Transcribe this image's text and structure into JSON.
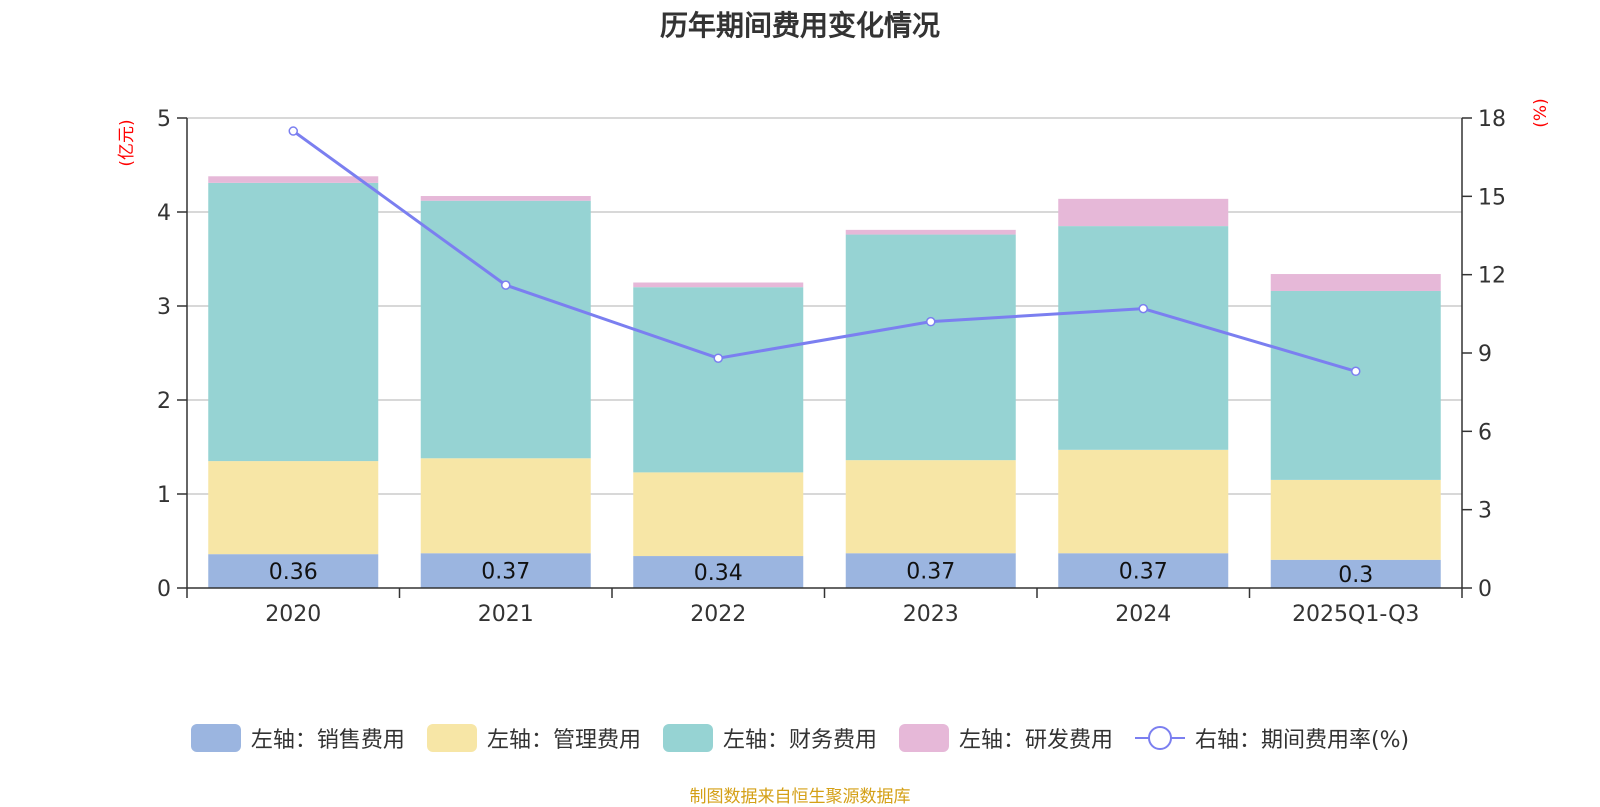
{
  "chart_data": {
    "type": "bar",
    "stacked": true,
    "title": "历年期间费用变化情况",
    "categories": [
      "2020",
      "2021",
      "2022",
      "2023",
      "2024",
      "2025Q1-Q3"
    ],
    "left_axis": {
      "unit": "(亿元)",
      "ylim": [
        0,
        5
      ],
      "ticks": [
        "0",
        "1",
        "2",
        "3",
        "4",
        "5"
      ]
    },
    "right_axis": {
      "unit": "(%)",
      "ylim": [
        0,
        18
      ],
      "ticks": [
        "0",
        "3",
        "6",
        "9",
        "12",
        "15",
        "18"
      ]
    },
    "series": [
      {
        "name": "左轴：销售费用",
        "color": "#9bb5e0",
        "values": [
          0.36,
          0.37,
          0.34,
          0.37,
          0.37,
          0.3
        ],
        "labels": [
          "0.36",
          "0.37",
          "0.34",
          "0.37",
          "0.37",
          "0.3"
        ]
      },
      {
        "name": "左轴：管理费用",
        "color": "#f7e6a6",
        "values": [
          0.99,
          1.01,
          0.89,
          0.99,
          1.1,
          0.85
        ]
      },
      {
        "name": "左轴：财务费用",
        "color": "#96d3d3",
        "values": [
          2.96,
          2.74,
          1.97,
          2.4,
          2.38,
          2.01
        ]
      },
      {
        "name": "左轴：研发费用",
        "color": "#e6b8d8",
        "values": [
          0.07,
          0.05,
          0.05,
          0.05,
          0.29,
          0.18
        ]
      }
    ],
    "line_series": {
      "name": "右轴：期间费用率(%)",
      "color": "#7b7ff0",
      "values": [
        17.5,
        11.6,
        8.8,
        10.2,
        10.7,
        8.3
      ]
    },
    "grid": true,
    "legend_position": "bottom"
  },
  "source_note": "制图数据来自恒生聚源数据库"
}
